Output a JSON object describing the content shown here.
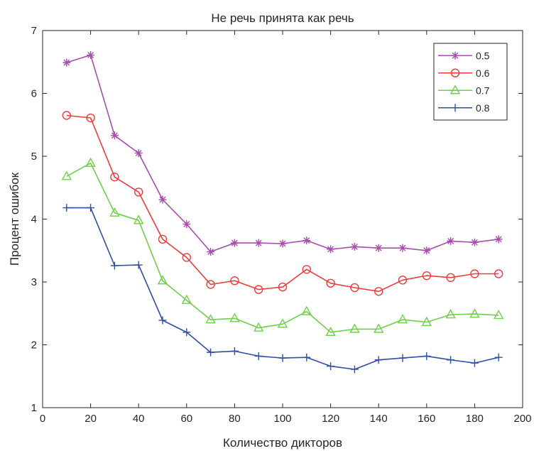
{
  "chart_data": {
    "type": "line",
    "title": "Не речь принята как речь",
    "xlabel": "Количество дикторов",
    "ylabel": "Процент ошибок",
    "xlim": [
      0,
      200
    ],
    "ylim": [
      1,
      7
    ],
    "xticks": [
      "0",
      "20",
      "40",
      "60",
      "80",
      "100",
      "120",
      "140",
      "160",
      "180",
      "200"
    ],
    "yticks": [
      "1",
      "2",
      "3",
      "4",
      "5",
      "6",
      "7"
    ],
    "grid": false,
    "legend_position": "top-right",
    "x": [
      10,
      20,
      30,
      40,
      50,
      60,
      70,
      80,
      90,
      100,
      110,
      120,
      130,
      140,
      150,
      160,
      170,
      180,
      190
    ],
    "series": [
      {
        "name": "0.5",
        "color": "#a64dad",
        "marker": "asterisk",
        "values": [
          6.49,
          6.61,
          5.33,
          5.05,
          4.31,
          3.92,
          3.48,
          3.62,
          3.62,
          3.61,
          3.66,
          3.52,
          3.56,
          3.54,
          3.54,
          3.5,
          3.65,
          3.63,
          3.68
        ]
      },
      {
        "name": "0.6",
        "color": "#ee3b3b",
        "marker": "circle",
        "values": [
          5.65,
          5.61,
          4.67,
          4.43,
          3.68,
          3.39,
          2.96,
          3.02,
          2.88,
          2.92,
          3.2,
          2.98,
          2.91,
          2.85,
          3.03,
          3.1,
          3.07,
          3.13,
          3.13
        ]
      },
      {
        "name": "0.7",
        "color": "#6fcf4a",
        "marker": "triangle",
        "values": [
          4.68,
          4.89,
          4.1,
          3.98,
          3.02,
          2.71,
          2.4,
          2.42,
          2.27,
          2.33,
          2.53,
          2.2,
          2.25,
          2.25,
          2.4,
          2.36,
          2.48,
          2.49,
          2.47
        ]
      },
      {
        "name": "0.8",
        "color": "#2f4fa6",
        "marker": "plus",
        "values": [
          4.18,
          4.18,
          3.26,
          3.27,
          2.39,
          2.2,
          1.88,
          1.9,
          1.82,
          1.79,
          1.8,
          1.66,
          1.61,
          1.76,
          1.79,
          1.82,
          1.76,
          1.71,
          1.8
        ]
      }
    ]
  }
}
